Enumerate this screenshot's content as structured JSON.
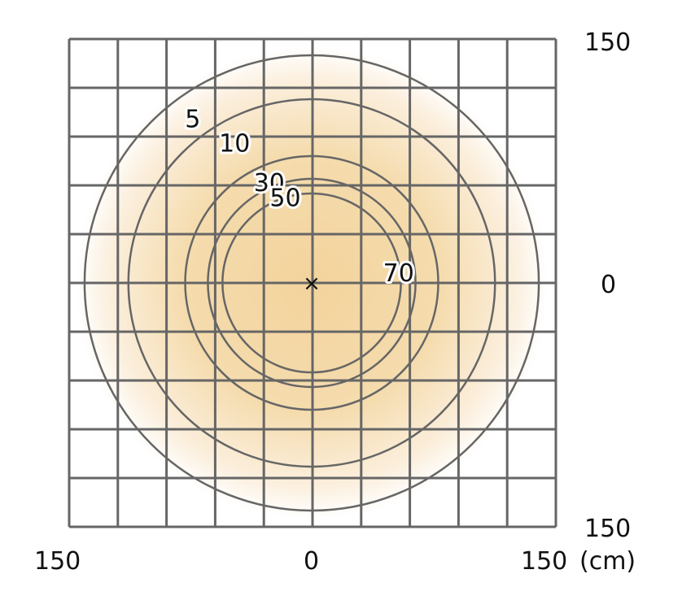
{
  "chart_data": {
    "type": "contour",
    "unit": "(cm)",
    "xlim": [
      -150,
      150
    ],
    "ylim": [
      -150,
      150
    ],
    "grid": true,
    "grid_step_cm": 30,
    "x_tick_labels": [
      "150",
      "0",
      "150"
    ],
    "y_tick_labels": [
      "150",
      "0",
      "150"
    ],
    "center_marker": "×",
    "contours": [
      {
        "label": "5",
        "radius_cm": 140
      },
      {
        "label": "10",
        "radius_cm": 113
      },
      {
        "label": "30",
        "radius_cm": 78
      },
      {
        "label": "50",
        "radius_cm": 64
      },
      {
        "label": "70",
        "radius_cm": 55
      }
    ],
    "colors": {
      "fill_center": "#f3d39c",
      "grid": "#666666",
      "contour": "#666666"
    }
  }
}
